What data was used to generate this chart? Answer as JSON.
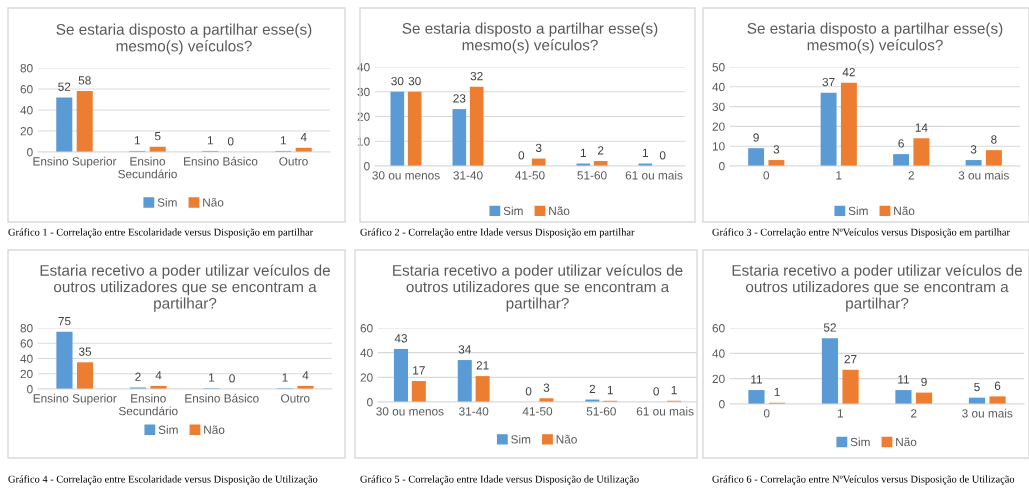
{
  "chart_data": [
    {
      "type": "bar",
      "title": "Se estaria disposto a partilhar esse(s)\nmesmo(s) veículos?",
      "categories": [
        "Ensino Superior",
        "Ensino\nSecundário",
        "Ensino Básico",
        "Outro"
      ],
      "series": [
        {
          "name": "Sim",
          "color": "#5b9bd5",
          "values": [
            52,
            1,
            1,
            1
          ]
        },
        {
          "name": "Não",
          "color": "#ed7d31",
          "values": [
            58,
            5,
            0,
            4
          ]
        }
      ],
      "ylim": [
        0,
        80
      ],
      "yticks": [
        0,
        20,
        40,
        60,
        80
      ],
      "grid": "y",
      "legend": "bottom",
      "data_labels": true,
      "annotations": [
        "Gráfico 1 - Correlação entre Escolaridade versus Disposição em partilhar"
      ]
    },
    {
      "type": "bar",
      "title": "Se estaria disposto a partilhar esse(s)\nmesmo(s) veículos?",
      "categories": [
        "30 ou menos",
        "31-40",
        "41-50",
        "51-60",
        "61 ou mais"
      ],
      "series": [
        {
          "name": "Sim",
          "color": "#5b9bd5",
          "values": [
            30,
            23,
            0,
            1,
            1
          ]
        },
        {
          "name": "Não",
          "color": "#ed7d31",
          "values": [
            30,
            32,
            3,
            2,
            0
          ]
        }
      ],
      "ylim": [
        0,
        40
      ],
      "yticks": [
        0,
        10,
        20,
        30,
        40
      ],
      "grid": "y",
      "legend": "bottom",
      "data_labels": true,
      "annotations": [
        "Gráfico 2 - Correlação entre Idade versus Disposição em partilhar"
      ]
    },
    {
      "type": "bar",
      "title": "Se estaria disposto a partilhar esse(s)\nmesmo(s) veículos?",
      "categories": [
        "0",
        "1",
        "2",
        "3 ou mais"
      ],
      "series": [
        {
          "name": "Sim",
          "color": "#5b9bd5",
          "values": [
            9,
            37,
            6,
            3
          ]
        },
        {
          "name": "Não",
          "color": "#ed7d31",
          "values": [
            3,
            42,
            14,
            8
          ]
        }
      ],
      "ylim": [
        0,
        50
      ],
      "yticks": [
        0,
        10,
        20,
        30,
        40,
        50
      ],
      "grid": "y",
      "legend": "bottom",
      "data_labels": true,
      "annotations": [
        "Gráfico 3 - Correlação entre NºVeículos versus Disposição em partilhar"
      ]
    },
    {
      "type": "bar",
      "title": "Estaria recetivo a poder utilizar veículos de\noutros utilizadores que se encontram a\npartilhar?",
      "categories": [
        "Ensino Superior",
        "Ensino\nSecundário",
        "Ensino Básico",
        "Outro"
      ],
      "series": [
        {
          "name": "Sim",
          "color": "#5b9bd5",
          "values": [
            75,
            2,
            1,
            1
          ]
        },
        {
          "name": "Não",
          "color": "#ed7d31",
          "values": [
            35,
            4,
            0,
            4
          ]
        }
      ],
      "ylim": [
        0,
        80
      ],
      "yticks": [
        0,
        20,
        40,
        60,
        80
      ],
      "grid": "y",
      "legend": "bottom",
      "data_labels": true,
      "annotations": [
        "Gráfico 4 - Correlação entre Escolaridade versus Disposição de Utilização"
      ]
    },
    {
      "type": "bar",
      "title": "Estaria recetivo a poder utilizar veículos de\noutros utilizadores que se encontram a\npartilhar?",
      "categories": [
        "30 ou menos",
        "31-40",
        "41-50",
        "51-60",
        "61 ou mais"
      ],
      "series": [
        {
          "name": "Sim",
          "color": "#5b9bd5",
          "values": [
            43,
            34,
            0,
            2,
            0
          ]
        },
        {
          "name": "Não",
          "color": "#ed7d31",
          "values": [
            17,
            21,
            3,
            1,
            1
          ]
        }
      ],
      "ylim": [
        0,
        60
      ],
      "yticks": [
        0,
        20,
        40,
        60
      ],
      "grid": "y",
      "legend": "bottom",
      "data_labels": true,
      "annotations": [
        "Gráfico 5 - Correlação entre Idade versus Disposição de Utilização"
      ]
    },
    {
      "type": "bar",
      "title": "Estaria recetivo a poder utilizar veículos de\noutros utilizadores que se encontram a\npartilhar?",
      "categories": [
        "0",
        "1",
        "2",
        "3 ou mais"
      ],
      "series": [
        {
          "name": "Sim",
          "color": "#5b9bd5",
          "values": [
            11,
            52,
            11,
            5
          ]
        },
        {
          "name": "Não",
          "color": "#ed7d31",
          "values": [
            1,
            27,
            9,
            6
          ]
        }
      ],
      "ylim": [
        0,
        60
      ],
      "yticks": [
        0,
        20,
        40,
        60
      ],
      "grid": "y",
      "legend": "bottom",
      "data_labels": true,
      "annotations": [
        "Gráfico 6 - Correlação entre NºVeículos versus Disposição de Utilização"
      ]
    }
  ]
}
